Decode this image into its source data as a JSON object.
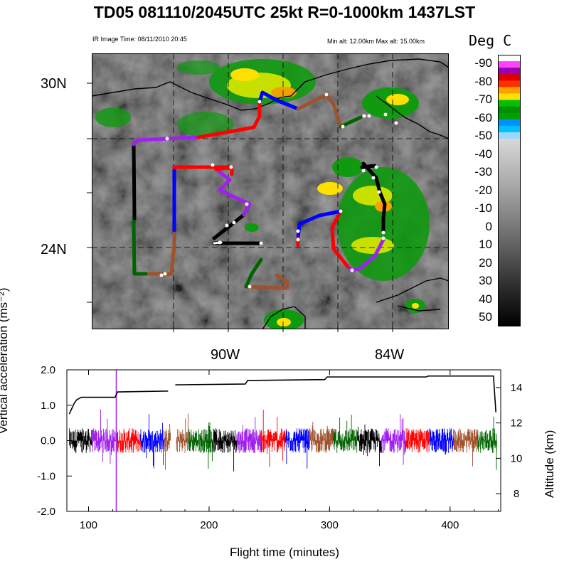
{
  "header": {
    "title": "TD05 081110/2045UTC 25kt  R=0-1000km 1437LST",
    "image_time": "IR Image Time: 08/11/2010 20:45",
    "alt_range": "Min alt: 12.00km  Max alt: 15.00km"
  },
  "map": {
    "lat_labels": [
      "30N",
      "24N"
    ],
    "lon_labels": [
      "90W",
      "84W"
    ],
    "colorbar": {
      "title": "Deg C",
      "labels": [
        "-90",
        "-80",
        "-70",
        "-60",
        "-50",
        "-40",
        "-30",
        "-20",
        "-10",
        "0",
        "10",
        "20",
        "30",
        "40",
        "50"
      ],
      "colors": [
        "#ffffff",
        "#ff44ff",
        "#9a00b0",
        "#e00000",
        "#ff3000",
        "#ffa000",
        "#ffe000",
        "#00c000",
        "#009000",
        "#00a000",
        "#0090ff",
        "#00c0ff",
        "#9ad8ff"
      ]
    },
    "segment_colors": [
      "#000000",
      "#a020f0",
      "#ff0000",
      "#0000ff",
      "#a0522d",
      "#006400"
    ]
  },
  "chart_data": {
    "type": "line",
    "title": "",
    "xlabel": "Flight time (minutes)",
    "ylabel_left": "Vertical acceleration (ms⁻²)",
    "ylabel_right": "Altitude (km)",
    "xlim": [
      82,
      442
    ],
    "ylim_left": [
      -2.0,
      2.0
    ],
    "ylim_right": [
      7,
      15
    ],
    "x_ticks": [
      "100",
      "200",
      "300",
      "400"
    ],
    "y_ticks_left": [
      "2.0",
      "1.0",
      "0.0",
      "-1.0",
      "-2.0"
    ],
    "y_ticks_right": [
      "14",
      "12",
      "10",
      "8"
    ],
    "series": [
      {
        "name": "Altitude",
        "x": [
          84,
          88,
          90,
          94,
          122,
          124,
          166,
          172,
          230,
          232,
          296,
          298,
          380,
          382,
          436,
          438
        ],
        "y": [
          12.5,
          13.1,
          13.3,
          13.45,
          13.45,
          13.75,
          13.8,
          14.15,
          14.2,
          14.4,
          14.45,
          14.6,
          14.6,
          14.65,
          14.65,
          12.6
        ]
      },
      {
        "name": "Vertical acceleration segments",
        "segments": [
          {
            "x0": 84,
            "x1": 103,
            "color": "#000000"
          },
          {
            "x0": 103,
            "x1": 123,
            "color": "#a020f0"
          },
          {
            "x0": 123,
            "x1": 143,
            "color": "#ff0000"
          },
          {
            "x0": 143,
            "x1": 163,
            "color": "#0000ff"
          },
          {
            "x0": 163,
            "x1": 168,
            "color": "#a0522d"
          },
          {
            "x0": 173,
            "x1": 183,
            "color": "#a0522d"
          },
          {
            "x0": 183,
            "x1": 203,
            "color": "#006400"
          },
          {
            "x0": 203,
            "x1": 223,
            "color": "#000000"
          },
          {
            "x0": 223,
            "x1": 243,
            "color": "#a020f0"
          },
          {
            "x0": 243,
            "x1": 263,
            "color": "#ff0000"
          },
          {
            "x0": 263,
            "x1": 283,
            "color": "#0000ff"
          },
          {
            "x0": 283,
            "x1": 303,
            "color": "#a0522d"
          },
          {
            "x0": 303,
            "x1": 323,
            "color": "#006400"
          },
          {
            "x0": 323,
            "x1": 343,
            "color": "#000000"
          },
          {
            "x0": 343,
            "x1": 363,
            "color": "#a020f0"
          },
          {
            "x0": 363,
            "x1": 383,
            "color": "#ff0000"
          },
          {
            "x0": 383,
            "x1": 403,
            "color": "#0000ff"
          },
          {
            "x0": 403,
            "x1": 423,
            "color": "#a0522d"
          },
          {
            "x0": 423,
            "x1": 439,
            "color": "#006400"
          }
        ],
        "spike": {
          "x": 123,
          "ymin": -2.0,
          "ymax": 2.0,
          "color": "#a020f0"
        }
      }
    ]
  }
}
